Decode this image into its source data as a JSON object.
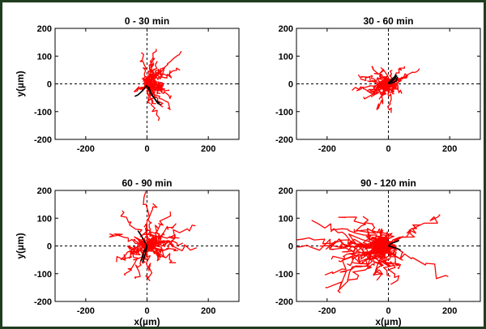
{
  "chart_data": [
    {
      "type": "line",
      "title": "0 - 30 min",
      "ylabel": "y(µm)",
      "xlabel": "",
      "xlim": [
        -300,
        300
      ],
      "ylim": [
        -200,
        200
      ],
      "xticks": [
        -200,
        0,
        200
      ],
      "yticks": [
        -200,
        -100,
        0,
        100,
        200
      ],
      "xtick_labels": [
        "-200",
        "0",
        "200"
      ],
      "ytick_labels": [
        "-200",
        "-100",
        "0",
        "100",
        "200"
      ],
      "reference_lines": {
        "x": 0,
        "y": 0,
        "style": "dashed"
      },
      "track_colors": [
        "#ff0000",
        "#000000"
      ],
      "track_counts": {
        "red": 30,
        "black": 3
      },
      "spread": {
        "cx": 35,
        "cy": 10,
        "sx": 45,
        "sy": 50
      },
      "black_tracks": [
        {
          "x": [
            0,
            -15,
            -30,
            -40
          ],
          "y": [
            -5,
            -25,
            -40,
            -45
          ]
        },
        {
          "x": [
            5,
            15,
            30,
            40
          ],
          "y": [
            -10,
            -40,
            -60,
            -70
          ]
        },
        {
          "x": [
            0,
            20,
            35,
            45
          ],
          "y": [
            -10,
            -45,
            -70,
            -75
          ]
        }
      ]
    },
    {
      "type": "line",
      "title": "30 - 60 min",
      "ylabel": "",
      "xlabel": "",
      "xlim": [
        -300,
        300
      ],
      "ylim": [
        -200,
        200
      ],
      "xticks": [
        -200,
        0,
        200
      ],
      "yticks": [
        -200,
        -100,
        0,
        100,
        200
      ],
      "xtick_labels": [
        "-200",
        "0",
        "200"
      ],
      "ytick_labels": [
        "-200",
        "-100",
        "0",
        "100",
        "200"
      ],
      "reference_lines": {
        "x": 0,
        "y": 0,
        "style": "dashed"
      },
      "track_colors": [
        "#ff0000",
        "#000000"
      ],
      "track_counts": {
        "red": 32,
        "black": 3
      },
      "spread": {
        "cx": -25,
        "cy": 10,
        "sx": 45,
        "sy": 55
      },
      "black_tracks": [
        {
          "x": [
            0,
            10,
            20,
            25
          ],
          "y": [
            0,
            15,
            25,
            35
          ]
        },
        {
          "x": [
            0,
            12,
            22,
            28
          ],
          "y": [
            5,
            10,
            20,
            30
          ]
        },
        {
          "x": [
            0,
            15,
            25,
            30
          ],
          "y": [
            0,
            5,
            10,
            25
          ]
        }
      ]
    },
    {
      "type": "line",
      "title": "60 - 90 min",
      "ylabel": "y(µm)",
      "xlabel": "x(µm)",
      "xlim": [
        -300,
        300
      ],
      "ylim": [
        -200,
        200
      ],
      "xticks": [
        -200,
        0,
        200
      ],
      "yticks": [
        -200,
        -100,
        0,
        100,
        200
      ],
      "xtick_labels": [
        "-200",
        "0",
        "200"
      ],
      "ytick_labels": [
        "-200",
        "-100",
        "0",
        "100",
        "200"
      ],
      "reference_lines": {
        "x": 0,
        "y": 0,
        "style": "dashed"
      },
      "track_colors": [
        "#ff0000",
        "#000000"
      ],
      "track_counts": {
        "red": 34,
        "black": 3
      },
      "spread": {
        "cx": 10,
        "cy": 0,
        "sx": 75,
        "sy": 75
      },
      "black_tracks": [
        {
          "x": [
            0,
            -10,
            -20,
            -30
          ],
          "y": [
            0,
            20,
            40,
            55
          ]
        },
        {
          "x": [
            0,
            -10,
            -15,
            -20
          ],
          "y": [
            0,
            -20,
            -40,
            -55
          ]
        },
        {
          "x": [
            0,
            -5,
            -10,
            -15
          ],
          "y": [
            0,
            -25,
            -45,
            -60
          ]
        }
      ]
    },
    {
      "type": "line",
      "title": "90 - 120 min",
      "ylabel": "",
      "xlabel": "x(µm)",
      "xlim": [
        -300,
        300
      ],
      "ylim": [
        -200,
        200
      ],
      "xticks": [
        -200,
        0,
        200
      ],
      "yticks": [
        -200,
        -100,
        0,
        100,
        200
      ],
      "xtick_labels": [
        "-200",
        "0",
        "200"
      ],
      "ytick_labels": [
        "-200",
        "-100",
        "0",
        "100",
        "200"
      ],
      "reference_lines": {
        "x": 0,
        "y": 0,
        "style": "dashed"
      },
      "track_colors": [
        "#ff0000",
        "#000000"
      ],
      "track_counts": {
        "red": 38,
        "black": 2
      },
      "spread": {
        "cx": -70,
        "cy": 0,
        "sx": 120,
        "sy": 90
      },
      "black_tracks": [
        {
          "x": [
            0,
            15,
            30,
            40
          ],
          "y": [
            0,
            -5,
            -10,
            -15
          ]
        },
        {
          "x": [
            0,
            10,
            25,
            35
          ],
          "y": [
            0,
            10,
            15,
            20
          ]
        }
      ]
    }
  ]
}
